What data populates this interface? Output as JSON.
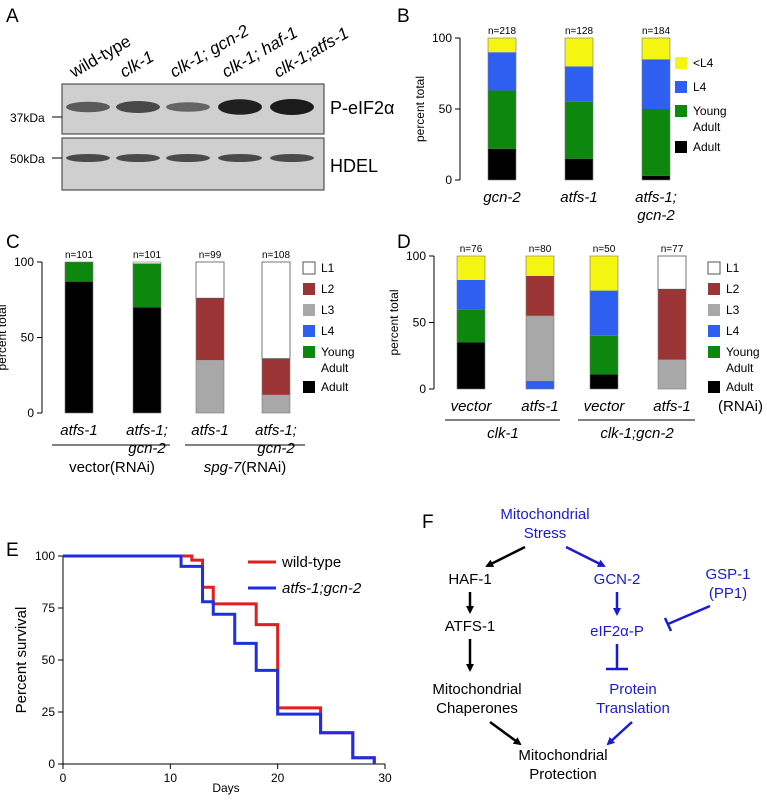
{
  "panel_labels": {
    "a": "A",
    "b": "B",
    "c": "C",
    "d": "D",
    "e": "E",
    "f": "F"
  },
  "panel_a": {
    "lanes": [
      "wild-type",
      "clk-1",
      "clk-1; gcn-2",
      "clk-1; haf-1",
      "clk-1;atfs-1"
    ],
    "blot1": {
      "mw": "37kDa",
      "label": "P-eIF2α"
    },
    "blot2": {
      "mw": "50kDa",
      "label": "HDEL"
    },
    "band_intensity_1": [
      0.45,
      0.6,
      0.35,
      0.95,
      1.0
    ],
    "band_intensity_2": [
      0.7,
      0.7,
      0.7,
      0.7,
      0.7
    ]
  },
  "chart_data": [
    {
      "panel": "B",
      "type": "bar",
      "stacked": true,
      "ylabel": "percent total",
      "ylim": [
        0,
        100
      ],
      "yticks": [
        "0",
        "50",
        "100"
      ],
      "categories": [
        [
          "gcn-2"
        ],
        [
          "atfs-1"
        ],
        [
          "atfs-1;",
          "gcn-2"
        ]
      ],
      "n_labels": [
        "n=218",
        "n=128",
        "n=184"
      ],
      "series": [
        {
          "name": "Adult",
          "color": "#000000",
          "values": [
            22,
            15,
            3
          ]
        },
        {
          "name": "Young Adult",
          "color": "#0d870d",
          "values": [
            41,
            40,
            47
          ]
        },
        {
          "name": "L4",
          "color": "#2f5ff0",
          "values": [
            27,
            25,
            35
          ]
        },
        {
          "name": "<L4",
          "color": "#f5f512",
          "values": [
            10,
            20,
            15
          ]
        }
      ],
      "legend": [
        [
          "<L4"
        ],
        [
          "L4"
        ],
        [
          "Young",
          "Adult"
        ],
        [
          "Adult"
        ]
      ]
    },
    {
      "panel": "C",
      "type": "bar",
      "stacked": true,
      "ylabel": "percent total",
      "ylim": [
        0,
        100
      ],
      "yticks": [
        "0",
        "50",
        "100"
      ],
      "categories": [
        [
          "atfs-1"
        ],
        [
          "atfs-1;",
          "gcn-2"
        ],
        [
          "atfs-1"
        ],
        [
          "atfs-1;",
          "gcn-2"
        ]
      ],
      "n_labels": [
        "n=101",
        "n=101",
        "n=99",
        "n=108"
      ],
      "groups": [
        {
          "prefix": "vector",
          "suffix": "(RNAi)"
        },
        {
          "prefix": "spg-7",
          "suffix": "(RNAi)"
        }
      ],
      "series": [
        {
          "name": "Adult",
          "color": "#000000",
          "values": [
            87,
            70,
            0,
            0
          ]
        },
        {
          "name": "Young Adult",
          "color": "#0d870d",
          "values": [
            13,
            29,
            0,
            0
          ]
        },
        {
          "name": "L4",
          "color": "#2f5ff0",
          "values": [
            0,
            0,
            0,
            0
          ]
        },
        {
          "name": "L3",
          "color": "#a8a8a8",
          "values": [
            0,
            0,
            35,
            12
          ]
        },
        {
          "name": "L2",
          "color": "#9b3434",
          "values": [
            0,
            0,
            41,
            24
          ]
        },
        {
          "name": "L1",
          "color": "#ffffff",
          "values": [
            0,
            0,
            24,
            64
          ]
        }
      ],
      "legend": [
        [
          "L1"
        ],
        [
          "L2"
        ],
        [
          "L3"
        ],
        [
          "L4"
        ],
        [
          "Young",
          "Adult"
        ],
        [
          "Adult"
        ]
      ]
    },
    {
      "panel": "D",
      "type": "bar",
      "stacked": true,
      "ylabel": "percent total",
      "ylim": [
        0,
        100
      ],
      "yticks": [
        "0",
        "50",
        "100"
      ],
      "categories": [
        [
          "vector"
        ],
        [
          "atfs-1"
        ],
        [
          "vector"
        ],
        [
          "atfs-1"
        ]
      ],
      "n_labels": [
        "n=76",
        "n=80",
        "n=50",
        "n=77"
      ],
      "rnai_label": "(RNAi)",
      "groups": [
        "clk-1",
        "clk-1;gcn-2"
      ],
      "series": [
        {
          "name": "Adult",
          "color": "#000000",
          "values": [
            35,
            0,
            11,
            0
          ]
        },
        {
          "name": "Young Adult",
          "color": "#0d870d",
          "values": [
            25,
            0,
            29,
            0
          ]
        },
        {
          "name": "L4",
          "color": "#2f5ff0",
          "values": [
            22,
            6,
            34,
            0
          ]
        },
        {
          "name": "L3",
          "color": "#a8a8a8",
          "values": [
            0,
            49,
            0,
            22
          ]
        },
        {
          "name": "L2",
          "color": "#9b3434",
          "values": [
            0,
            30,
            0,
            53
          ]
        },
        {
          "name": "L1",
          "color": "#ffffff",
          "values": [
            0,
            0,
            0,
            25
          ]
        },
        {
          "name": "<L4",
          "color": "#f5f512",
          "values": [
            18,
            15,
            26,
            0
          ]
        }
      ],
      "legend": [
        [
          "L1"
        ],
        [
          "L2"
        ],
        [
          "L3"
        ],
        [
          "L4"
        ],
        [
          "Young",
          "Adult"
        ],
        [
          "Adult"
        ]
      ]
    },
    {
      "panel": "E",
      "type": "line",
      "step": true,
      "xlabel": "Days",
      "ylabel": "Percent survival",
      "xlim": [
        0,
        30
      ],
      "ylim": [
        0,
        100
      ],
      "xticks": [
        "0",
        "10",
        "20",
        "30"
      ],
      "yticks": [
        "0",
        "25",
        "50",
        "75",
        "100"
      ],
      "series": [
        {
          "name": "wild-type",
          "color": "#e01f1f",
          "x": [
            0,
            12,
            13,
            14,
            18,
            20,
            24,
            27,
            29
          ],
          "y": [
            100,
            98,
            85,
            77,
            67,
            27,
            15,
            3,
            0
          ]
        },
        {
          "name": "atfs-1;gcn-2",
          "color": "#1f2fe0",
          "x": [
            0,
            11,
            13,
            14,
            16,
            18,
            20,
            24,
            27,
            29
          ],
          "y": [
            100,
            95,
            78,
            72,
            58,
            45,
            24,
            15,
            3,
            0
          ]
        }
      ]
    }
  ],
  "panel_f": {
    "stress": [
      "Mitochondrial",
      "Stress"
    ],
    "haf": "HAF-1",
    "atfs": "ATFS-1",
    "chaperones": [
      "Mitochondrial",
      "Chaperones"
    ],
    "gcn": "GCN-2",
    "gsp": [
      "GSP-1",
      "(PP1)"
    ],
    "eif": "eIF2α-P",
    "translation": [
      "Protein",
      "Translation"
    ],
    "protection": [
      "Mitochondrial",
      "Protection"
    ]
  }
}
